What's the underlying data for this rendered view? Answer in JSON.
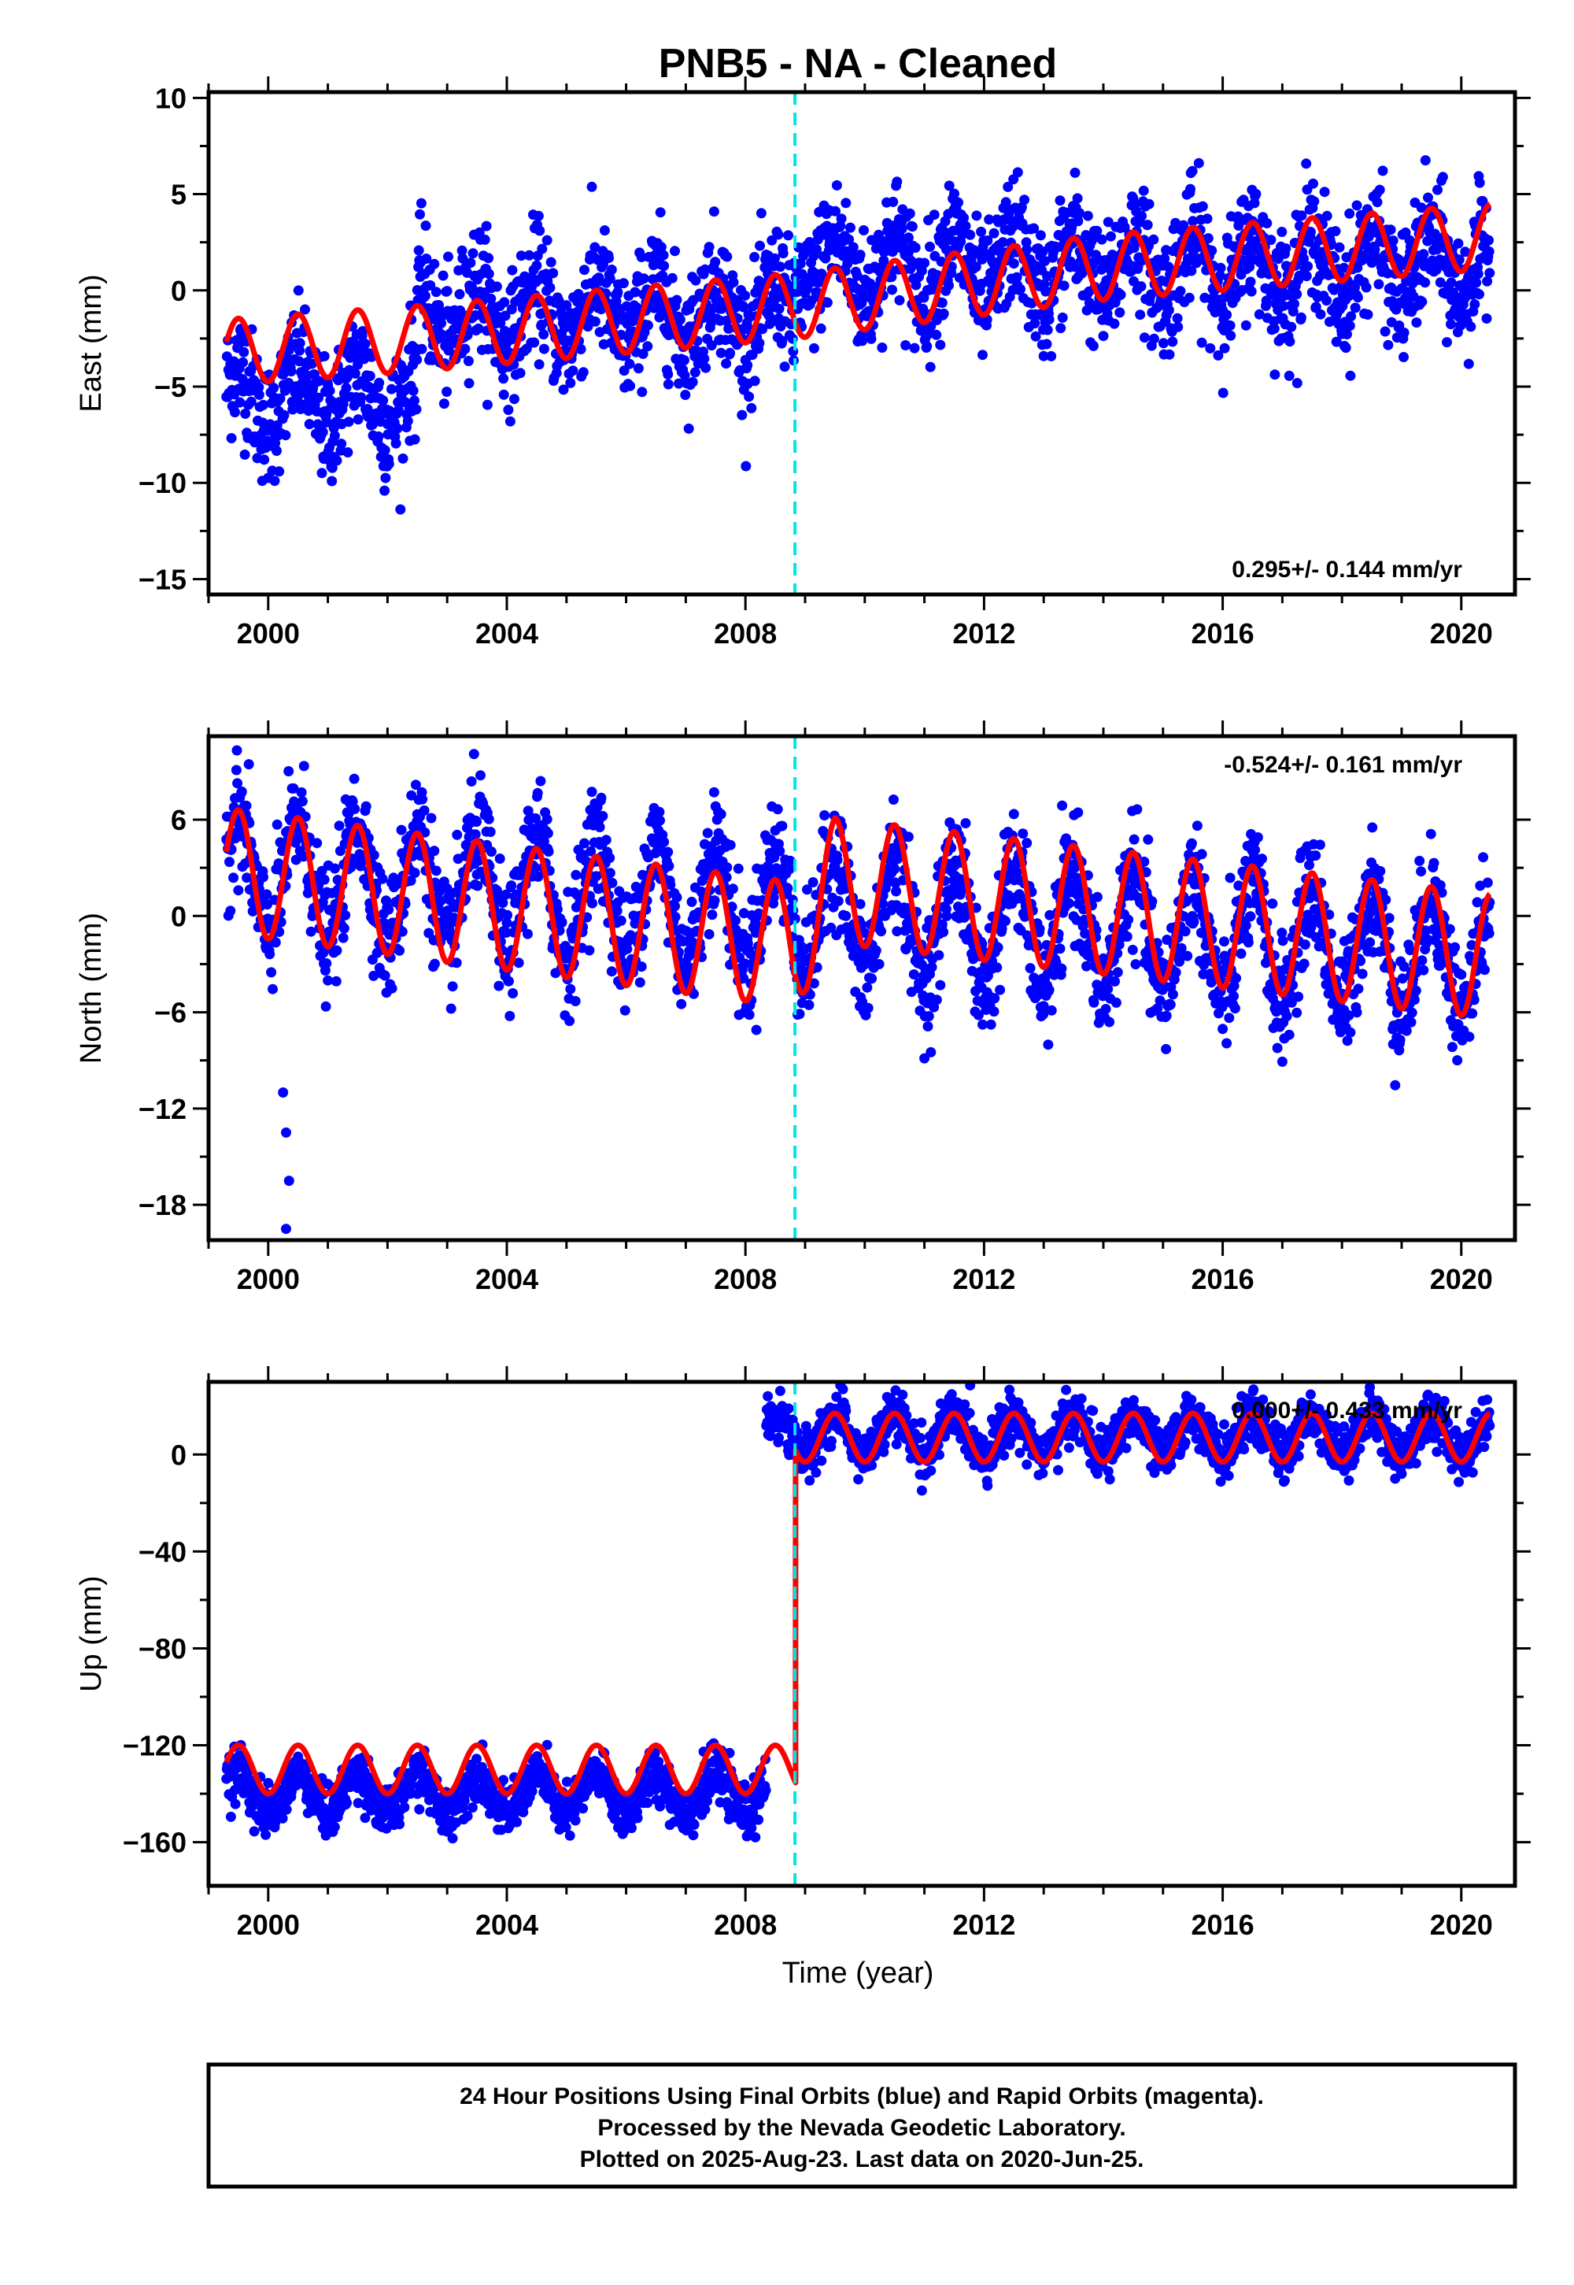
{
  "title": "PNB5  - NA - Cleaned",
  "x_axis_label": "Time (year)",
  "footer": [
    "24 Hour Positions Using Final Orbits (blue) and Rapid Orbits (magenta).",
    "Processed by the Nevada Geodetic Laboratory.",
    "Plotted on 2025-Aug-23. Last data on 2020-Jun-25."
  ],
  "colors": {
    "data_points": "#0000ff",
    "model_fit": "#ff0000",
    "event_line": "#00e5e5",
    "frame": "#000000"
  },
  "chart_data": [
    {
      "type": "scatter",
      "panel": "east",
      "ylabel": "East (mm)",
      "xlim": [
        1999.0,
        2020.9
      ],
      "ylim": [
        -15.8,
        10.3
      ],
      "x_ticks": [
        2000,
        2004,
        2008,
        2012,
        2016,
        2020
      ],
      "y_ticks": [
        10,
        5,
        0,
        -5,
        -10,
        -15
      ],
      "rate_text": "0.295+/- 0.144 mm/yr",
      "rate_position": "bottom-right",
      "data_span": [
        1999.3,
        2020.48
      ],
      "event_line_x": 2008.83,
      "series": [
        {
          "name": "",
          "kind": "points",
          "trend_mm_per_yr": 0.295,
          "amplitude_mm": 1.5,
          "scatter_mm": 1.6,
          "mean_levels": [
            {
              "from": 1999.3,
              "to": 2002.5,
              "value": -5.5
            },
            {
              "from": 2002.5,
              "to": 2008.83,
              "value": -1.2
            },
            {
              "from": 2008.83,
              "to": 2020.48,
              "value": 1.2
            }
          ]
        },
        {
          "name": "",
          "kind": "model",
          "period_yr": 1.0,
          "phase_peak": 0.5,
          "amplitude_mm": 1.7,
          "anchors": [
            [
              1999.3,
              -3.2
            ],
            [
              2002.5,
              -2.5
            ],
            [
              2008.83,
              -0.8
            ],
            [
              2014.0,
              1.2
            ],
            [
              2020.48,
              2.8
            ]
          ]
        }
      ],
      "annotations": []
    },
    {
      "type": "scatter",
      "panel": "north",
      "ylabel": "North (mm)",
      "xlim": [
        1999.0,
        2020.9
      ],
      "ylim": [
        -20.2,
        11.2
      ],
      "x_ticks": [
        2000,
        2004,
        2008,
        2012,
        2016,
        2020
      ],
      "y_ticks": [
        6,
        0,
        -6,
        -12,
        -18
      ],
      "rate_text": "-0.524+/- 0.161 mm/yr",
      "rate_position": "top-right",
      "data_span": [
        1999.3,
        2020.48
      ],
      "event_line_x": 2008.83,
      "series": [
        {
          "name": "",
          "kind": "points",
          "amplitude_mm": 3.6,
          "scatter_mm": 1.8,
          "outliers": [
            [
              2000.25,
              -11.0
            ],
            [
              2000.3,
              -13.5
            ],
            [
              2000.35,
              -16.5
            ],
            [
              2000.3,
              -19.5
            ]
          ]
        },
        {
          "name": "",
          "kind": "model",
          "period_yr": 1.0,
          "phase_peak": 0.45,
          "amplitude_mm": 3.9,
          "anchors": [
            [
              1999.3,
              2.8
            ],
            [
              2008.83,
              -1.8
            ],
            [
              2009.5,
              2.2
            ],
            [
              2020.48,
              -2.5
            ]
          ]
        }
      ],
      "annotations": []
    },
    {
      "type": "scatter",
      "panel": "up",
      "ylabel": "Up (mm)",
      "xlim": [
        1999.0,
        2020.9
      ],
      "ylim": [
        -178,
        30
      ],
      "x_ticks": [
        2000,
        2004,
        2008,
        2012,
        2016,
        2020
      ],
      "y_ticks": [
        0,
        -40,
        -80,
        -120,
        -160
      ],
      "rate_text": "0.000+/- 0.433 mm/yr",
      "rate_position": "top-right",
      "data_span": [
        1999.3,
        2020.48
      ],
      "event_line_x": 2008.83,
      "series": [
        {
          "name": "",
          "kind": "points",
          "amplitude_mm": 8,
          "scatter_mm": 5,
          "segments": [
            {
              "from": 1999.3,
              "to": 2008.35,
              "value": -140
            },
            {
              "from": 2008.35,
              "to": 2020.48,
              "value": 8
            }
          ]
        },
        {
          "name": "",
          "kind": "model",
          "period_yr": 1.0,
          "phase_peak": 0.55,
          "amplitude_mm": 10,
          "segments": [
            {
              "from": 1999.3,
              "to": 2008.83,
              "value": -130
            },
            {
              "from": 2008.83,
              "to": 2020.48,
              "value": 7
            }
          ]
        }
      ],
      "annotations": []
    }
  ]
}
